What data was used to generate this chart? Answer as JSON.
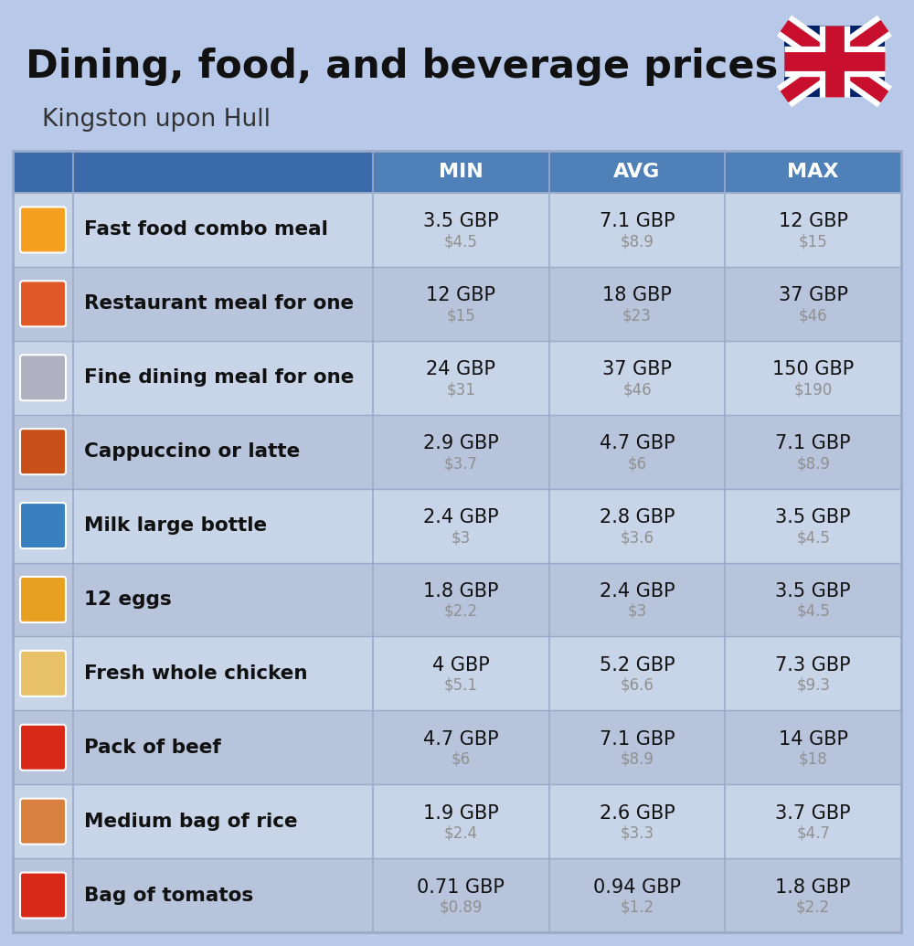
{
  "title": "Dining, food, and beverage prices",
  "subtitle": "Kingston upon Hull",
  "background_color": "#b8c8e8",
  "header_color": "#5080b8",
  "header_text_color": "#ffffff",
  "row_color_light": "#c8d4e8",
  "row_color_dark": "#b8c4dc",
  "divider_color": "#9aaac8",
  "columns": [
    "MIN",
    "AVG",
    "MAX"
  ],
  "icon_colors": [
    "#e8a020",
    "#e05030",
    "#c0c0d0",
    "#c86020",
    "#4090d0",
    "#e8a020",
    "#e0c080",
    "#e03020",
    "#e09050",
    "#e03020"
  ],
  "rows": [
    {
      "label": "Fast food combo meal",
      "min_gbp": "3.5 GBP",
      "min_usd": "$4.5",
      "avg_gbp": "7.1 GBP",
      "avg_usd": "$8.9",
      "max_gbp": "12 GBP",
      "max_usd": "$15"
    },
    {
      "label": "Restaurant meal for one",
      "min_gbp": "12 GBP",
      "min_usd": "$15",
      "avg_gbp": "18 GBP",
      "avg_usd": "$23",
      "max_gbp": "37 GBP",
      "max_usd": "$46"
    },
    {
      "label": "Fine dining meal for one",
      "min_gbp": "24 GBP",
      "min_usd": "$31",
      "avg_gbp": "37 GBP",
      "avg_usd": "$46",
      "max_gbp": "150 GBP",
      "max_usd": "$190"
    },
    {
      "label": "Cappuccino or latte",
      "min_gbp": "2.9 GBP",
      "min_usd": "$3.7",
      "avg_gbp": "4.7 GBP",
      "avg_usd": "$6",
      "max_gbp": "7.1 GBP",
      "max_usd": "$8.9"
    },
    {
      "label": "Milk large bottle",
      "min_gbp": "2.4 GBP",
      "min_usd": "$3",
      "avg_gbp": "2.8 GBP",
      "avg_usd": "$3.6",
      "max_gbp": "3.5 GBP",
      "max_usd": "$4.5"
    },
    {
      "label": "12 eggs",
      "min_gbp": "1.8 GBP",
      "min_usd": "$2.2",
      "avg_gbp": "2.4 GBP",
      "avg_usd": "$3",
      "max_gbp": "3.5 GBP",
      "max_usd": "$4.5"
    },
    {
      "label": "Fresh whole chicken",
      "min_gbp": "4 GBP",
      "min_usd": "$5.1",
      "avg_gbp": "5.2 GBP",
      "avg_usd": "$6.6",
      "max_gbp": "7.3 GBP",
      "max_usd": "$9.3"
    },
    {
      "label": "Pack of beef",
      "min_gbp": "4.7 GBP",
      "min_usd": "$6",
      "avg_gbp": "7.1 GBP",
      "avg_usd": "$8.9",
      "max_gbp": "14 GBP",
      "max_usd": "$18"
    },
    {
      "label": "Medium bag of rice",
      "min_gbp": "1.9 GBP",
      "min_usd": "$2.4",
      "avg_gbp": "2.6 GBP",
      "avg_usd": "$3.3",
      "max_gbp": "3.7 GBP",
      "max_usd": "$4.7"
    },
    {
      "label": "Bag of tomatos",
      "min_gbp": "0.71 GBP",
      "min_usd": "$0.89",
      "avg_gbp": "0.94 GBP",
      "avg_usd": "$1.2",
      "max_gbp": "1.8 GBP",
      "max_usd": "$2.2"
    }
  ]
}
